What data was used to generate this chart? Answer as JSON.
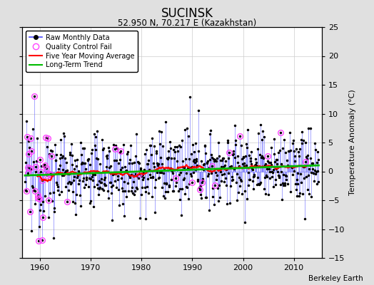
{
  "title": "SUCINSK",
  "subtitle": "52.950 N, 70.217 E (Kazakhstan)",
  "ylabel": "Temperature Anomaly (°C)",
  "credit": "Berkeley Earth",
  "xlim": [
    1956.5,
    2015.5
  ],
  "ylim": [
    -15,
    25
  ],
  "yticks": [
    -15,
    -10,
    -5,
    0,
    5,
    10,
    15,
    20,
    25
  ],
  "xticks": [
    1960,
    1970,
    1980,
    1990,
    2000,
    2010
  ],
  "bg_color": "#e0e0e0",
  "plot_bg_color": "#ffffff",
  "raw_line_color": "#4444ff",
  "raw_dot_color": "#000000",
  "stem_color": "#6666ff",
  "qc_fail_color": "#ff44ff",
  "moving_avg_color": "#ff0000",
  "trend_color": "#00bb00",
  "seed": 12345
}
